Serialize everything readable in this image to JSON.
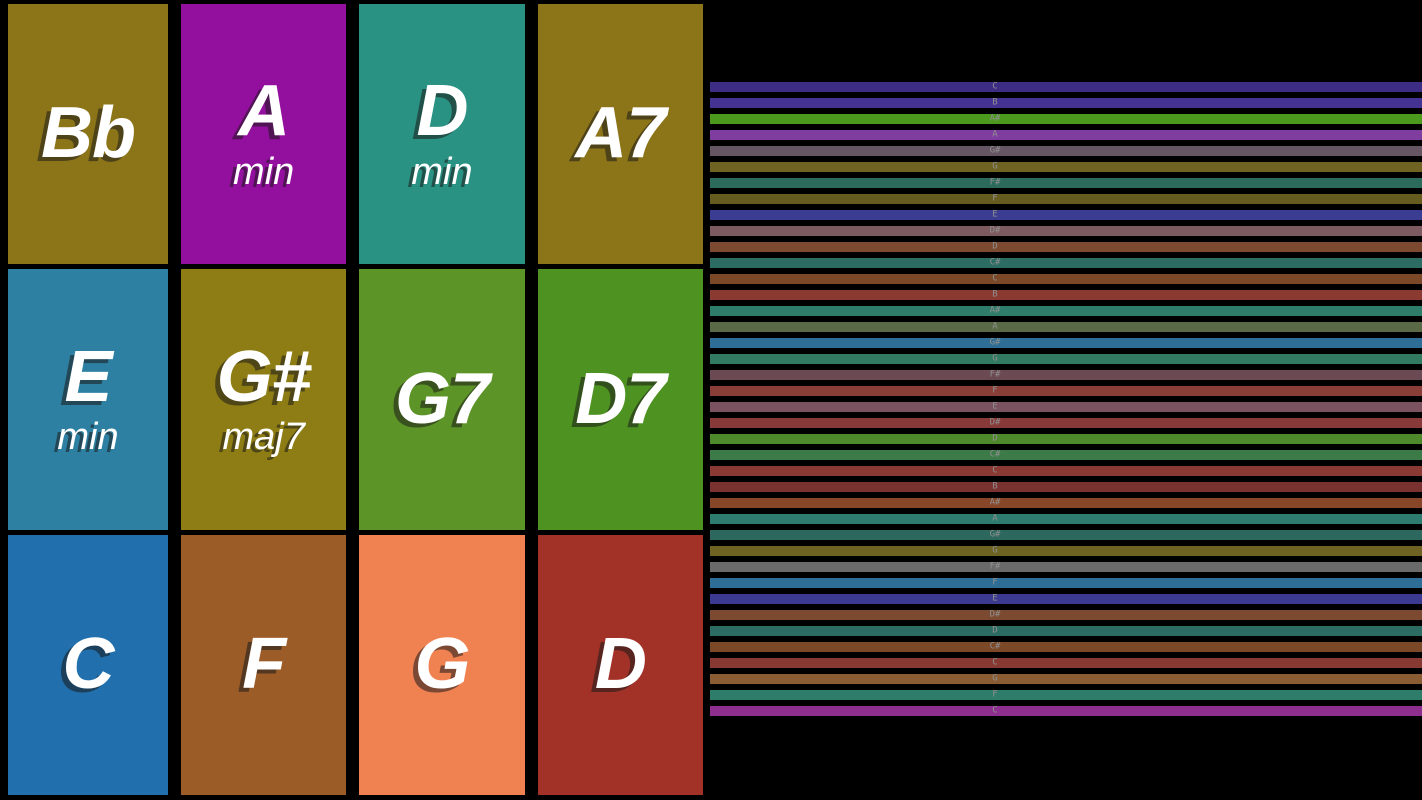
{
  "chord_grid": {
    "pads": [
      {
        "name": "Bb",
        "quality": "",
        "color": "#8c7418"
      },
      {
        "name": "A",
        "quality": "min",
        "color": "#930f9e"
      },
      {
        "name": "D",
        "quality": "min",
        "color": "#2a9283"
      },
      {
        "name": "A7",
        "quality": "",
        "color": "#8c7418"
      },
      {
        "name": "E",
        "quality": "min",
        "color": "#2e80a2"
      },
      {
        "name": "G#",
        "quality": "maj7",
        "color": "#8e7d14"
      },
      {
        "name": "G7",
        "quality": "",
        "color": "#5d9427"
      },
      {
        "name": "D7",
        "quality": "",
        "color": "#4e9321"
      },
      {
        "name": "C",
        "quality": "",
        "color": "#2170ad"
      },
      {
        "name": "F",
        "quality": "",
        "color": "#9c5c28"
      },
      {
        "name": "G",
        "quality": "",
        "color": "#f08252"
      },
      {
        "name": "D",
        "quality": "",
        "color": "#a23227"
      }
    ]
  },
  "strings": {
    "label_color": "#8f8f8f",
    "items": [
      {
        "note": "C",
        "color": "#3d2d85"
      },
      {
        "note": "B",
        "color": "#453393"
      },
      {
        "note": "A#",
        "color": "#4c9a1d"
      },
      {
        "note": "A",
        "color": "#7f3da0"
      },
      {
        "note": "G#",
        "color": "#665664"
      },
      {
        "note": "G",
        "color": "#6e6322"
      },
      {
        "note": "F#",
        "color": "#2c6a5c"
      },
      {
        "note": "F",
        "color": "#675c20"
      },
      {
        "note": "E",
        "color": "#3b3d92"
      },
      {
        "note": "D#",
        "color": "#7d5a60"
      },
      {
        "note": "D",
        "color": "#7c4a30"
      },
      {
        "note": "C#",
        "color": "#2d6c62"
      },
      {
        "note": "C",
        "color": "#7b4928"
      },
      {
        "note": "B",
        "color": "#8a3a30"
      },
      {
        "note": "A#",
        "color": "#2e7c6a"
      },
      {
        "note": "A",
        "color": "#5a6a46"
      },
      {
        "note": "G#",
        "color": "#2e6e96"
      },
      {
        "note": "G",
        "color": "#327a62"
      },
      {
        "note": "F#",
        "color": "#6c4a54"
      },
      {
        "note": "F",
        "color": "#8a3e38"
      },
      {
        "note": "E",
        "color": "#7b5260"
      },
      {
        "note": "D#",
        "color": "#883a38"
      },
      {
        "note": "D",
        "color": "#4e8a2c"
      },
      {
        "note": "C#",
        "color": "#3c7a48"
      },
      {
        "note": "C",
        "color": "#8a3a32"
      },
      {
        "note": "B",
        "color": "#7a3230"
      },
      {
        "note": "A#",
        "color": "#884628"
      },
      {
        "note": "A",
        "color": "#2e7c70"
      },
      {
        "note": "G#",
        "color": "#2c685e"
      },
      {
        "note": "G",
        "color": "#6e6322"
      },
      {
        "note": "F#",
        "color": "#6a6a6a"
      },
      {
        "note": "F",
        "color": "#2e6e96"
      },
      {
        "note": "E",
        "color": "#3c3a90"
      },
      {
        "note": "D#",
        "color": "#7c4a30"
      },
      {
        "note": "D",
        "color": "#2d6c62"
      },
      {
        "note": "C#",
        "color": "#7b4928"
      },
      {
        "note": "C",
        "color": "#883a32"
      },
      {
        "note": "G",
        "color": "#8a5c34"
      },
      {
        "note": "F",
        "color": "#2e7c6a"
      },
      {
        "note": "C",
        "color": "#8e2e8e"
      }
    ]
  }
}
